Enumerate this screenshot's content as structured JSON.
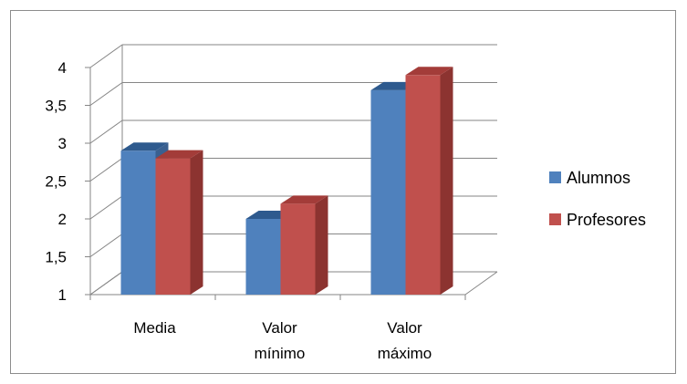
{
  "chart_data": {
    "type": "bar",
    "style": "3d-clustered-column",
    "categories": [
      [
        "Media"
      ],
      [
        "Valor",
        "mínimo"
      ],
      [
        "Valor",
        "máximo"
      ]
    ],
    "series": [
      {
        "name": "Alumnos",
        "values": [
          2.9,
          2.0,
          3.7
        ],
        "color": "#4F81BD",
        "side_color": "#3A6090",
        "top_color": "#2E5A8E"
      },
      {
        "name": "Profesores",
        "values": [
          2.8,
          2.2,
          3.9
        ],
        "color": "#C0504D",
        "side_color": "#8C3330",
        "top_color": "#A33C39"
      }
    ],
    "ylim": [
      1,
      4
    ],
    "yticks": [
      "1",
      "1,5",
      "2",
      "2,5",
      "3",
      "3,5",
      "4"
    ],
    "grid": true,
    "legend_position": "right",
    "title": "",
    "xlabel": "",
    "ylabel": ""
  }
}
